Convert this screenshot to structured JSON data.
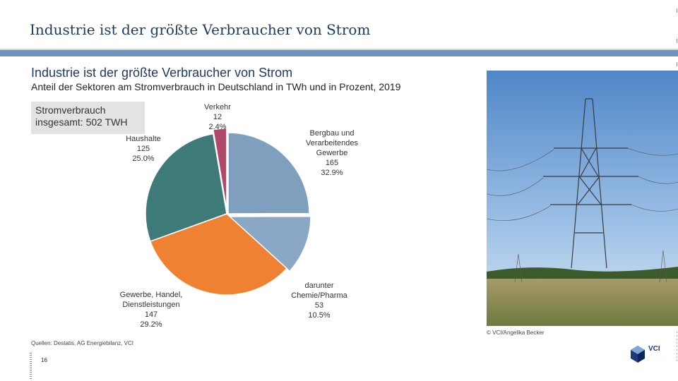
{
  "slide": {
    "title": "Industrie ist der größte Verbraucher von Strom",
    "source": "Quellen: Destatis, AG Energiebilanz, VCI",
    "page_number": "16",
    "photo_credit": "© VCI/Angelika Becker",
    "logo_text": "VCI"
  },
  "chart_data": {
    "type": "pie",
    "title": "Industrie ist der größte Verbraucher von Strom",
    "subtitle": "Anteil der Sektoren am Stromverbrauch in Deutschland in TWh und in Prozent, 2019",
    "total_label": "Stromverbrauch insgesamt: 502 TWH",
    "unit": "TWh",
    "slices": [
      {
        "name_lines": [
          "Bergbau und",
          "Verarbeitendes",
          "Gewerbe"
        ],
        "value": 165,
        "value_label": "165",
        "percent_label": "32.9%",
        "color": "#7f9fbf"
      },
      {
        "name_lines": [
          "darunter",
          "Chemie/Pharma"
        ],
        "value": 53,
        "value_label": "53",
        "percent_label": "10.5%",
        "color": "#8aa7c6"
      },
      {
        "name_lines": [
          "Gewerbe, Handel,",
          "Dienstleistungen"
        ],
        "value": 147,
        "value_label": "147",
        "percent_label": "29.2%",
        "color": "#ee8232"
      },
      {
        "name_lines": [
          "Haushalte"
        ],
        "value": 125,
        "value_label": "125",
        "percent_label": "25.0%",
        "color": "#3e7b78"
      },
      {
        "name_lines": [
          "Verkehr"
        ],
        "value": 12,
        "value_label": "12",
        "percent_label": "2.4%",
        "color": "#b0486a"
      }
    ]
  },
  "colors": {
    "accent_bar": "#6c93c0",
    "title_text": "#1f3a5f"
  }
}
